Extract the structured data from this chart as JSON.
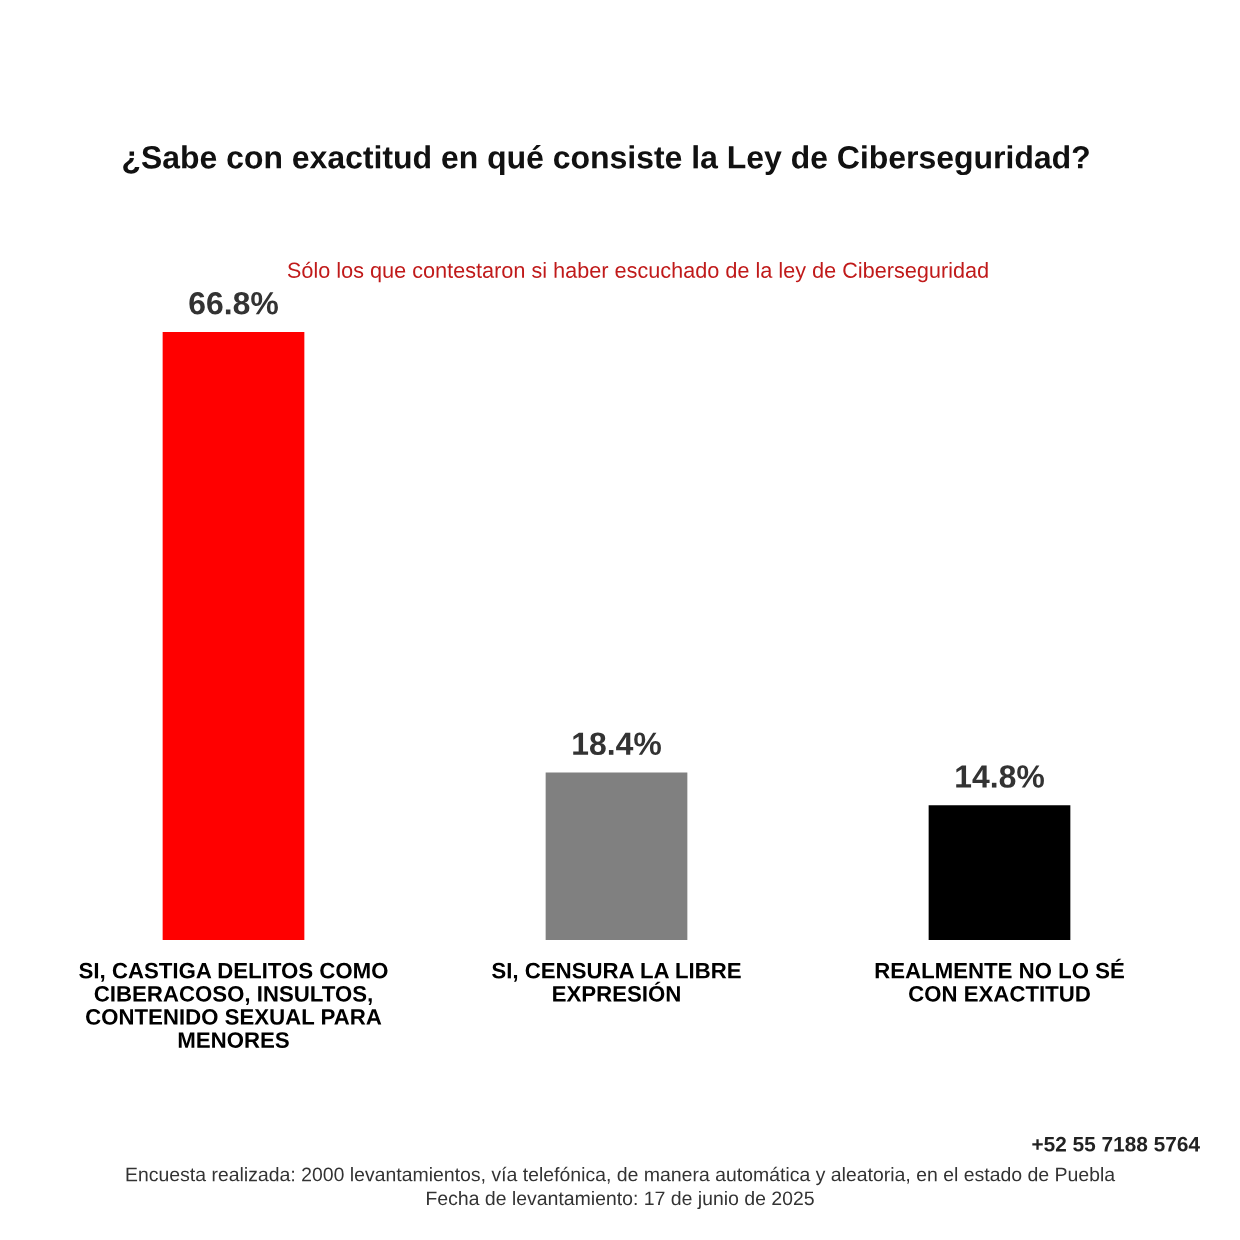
{
  "chart_data": {
    "type": "bar",
    "title": "¿Sabe con exactitud en qué consiste la Ley de Ciberseguridad?",
    "subtitle": "Sólo los que contestaron si haber escuchado de la ley de Ciberseguridad",
    "categories": [
      "SI, CASTIGA DELITOS COMO\nCIBERACOSO, INSULTOS,\nCONTENIDO SEXUAL PARA\nMENORES",
      "SI, CENSURA LA LIBRE\nEXPRESIÓN",
      "REALMENTE NO LO SÉ\nCON EXACTITUD"
    ],
    "values": [
      66.8,
      18.4,
      14.8
    ],
    "colors": [
      "#ff0000",
      "#808080",
      "#000000"
    ],
    "value_labels": [
      "66.8%",
      "18.4%",
      "14.8%"
    ],
    "tick_labels": "x",
    "annotations": [
      "+52 55 7188 5764",
      "Encuesta realizada: 2000 levantamientos, vía telefónica, de manera automática y aleatoria, en el estado de Puebla",
      "Fecha de levantamiento: 17 de junio de 2025"
    ]
  }
}
